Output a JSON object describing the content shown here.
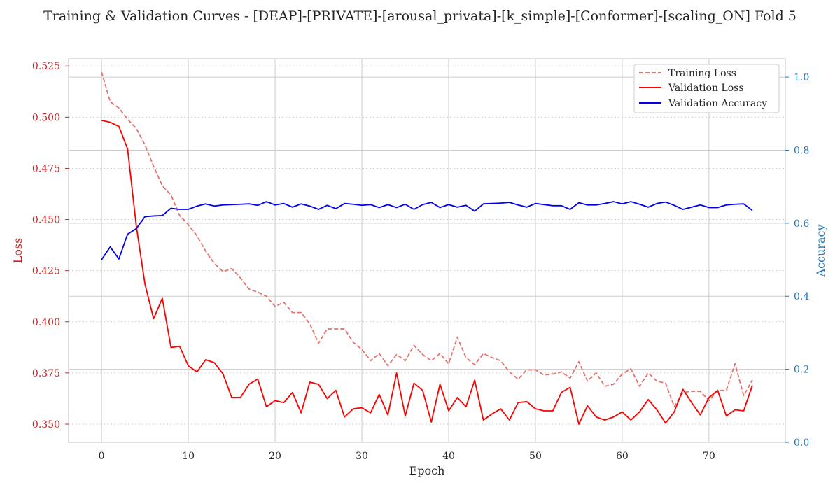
{
  "chart_data": {
    "type": "line",
    "title": "Training & Validation Curves - [DEAP]-[PRIVATE]-[arousal_privata]-[k_simple]-[Conformer]-[scaling_ON] Fold 5",
    "xlabel": "Epoch",
    "ylabel_left": "Loss",
    "ylabel_right": "Accuracy",
    "xlim": [
      -3.8,
      78.8
    ],
    "ylim_left": [
      0.3411,
      0.5285
    ],
    "ylim_right": [
      0.0,
      1.05
    ],
    "x_ticks": [
      0,
      10,
      20,
      30,
      40,
      50,
      60,
      70
    ],
    "y_ticks_left": [
      0.35,
      0.375,
      0.4,
      0.425,
      0.45,
      0.475,
      0.5,
      0.525
    ],
    "y_ticks_right": [
      0.0,
      0.2,
      0.4,
      0.6,
      0.8,
      1.0
    ],
    "legend_position": "top-right",
    "grid": true,
    "colors": {
      "training_loss": "#e8706d",
      "validation_loss": "#ff0000",
      "validation_accuracy": "#0000ee",
      "left_axis": "#cc2222",
      "right_axis": "#1f77b4"
    },
    "x": [
      0,
      1,
      2,
      3,
      4,
      5,
      6,
      7,
      8,
      9,
      10,
      11,
      12,
      13,
      14,
      15,
      16,
      17,
      18,
      19,
      20,
      21,
      22,
      23,
      24,
      25,
      26,
      27,
      28,
      29,
      30,
      31,
      32,
      33,
      34,
      35,
      36,
      37,
      38,
      39,
      40,
      41,
      42,
      43,
      44,
      45,
      46,
      47,
      48,
      49,
      50,
      51,
      52,
      53,
      54,
      55,
      56,
      57,
      58,
      59,
      60,
      61,
      62,
      63,
      64,
      65,
      66,
      67,
      68,
      69,
      70,
      71,
      72,
      73,
      74,
      75
    ],
    "series": [
      {
        "name": "Training Loss",
        "axis": "left",
        "style": "dashed",
        "values": [
          0.522,
          0.5075,
          0.5045,
          0.499,
          0.4945,
          0.4865,
          0.476,
          0.4665,
          0.462,
          0.452,
          0.4475,
          0.442,
          0.4345,
          0.4285,
          0.4245,
          0.426,
          0.4215,
          0.416,
          0.4145,
          0.4125,
          0.4075,
          0.4095,
          0.4045,
          0.4045,
          0.399,
          0.3895,
          0.3965,
          0.3965,
          0.3965,
          0.39,
          0.3865,
          0.381,
          0.3845,
          0.3785,
          0.384,
          0.381,
          0.3885,
          0.384,
          0.381,
          0.3845,
          0.3795,
          0.3925,
          0.3825,
          0.379,
          0.3845,
          0.3825,
          0.381,
          0.3755,
          0.372,
          0.3765,
          0.3765,
          0.374,
          0.3745,
          0.3755,
          0.3725,
          0.3805,
          0.371,
          0.375,
          0.3685,
          0.3695,
          0.3745,
          0.377,
          0.3685,
          0.375,
          0.371,
          0.37,
          0.3585,
          0.3655,
          0.366,
          0.366,
          0.3615,
          0.3665,
          0.3665,
          0.3795,
          0.364,
          0.3715
        ]
      },
      {
        "name": "Validation Loss",
        "axis": "left",
        "style": "solid",
        "values": [
          0.4985,
          0.4975,
          0.4955,
          0.4845,
          0.447,
          0.4185,
          0.4015,
          0.4115,
          0.3875,
          0.388,
          0.3785,
          0.3755,
          0.3815,
          0.38,
          0.3745,
          0.363,
          0.363,
          0.3695,
          0.372,
          0.3585,
          0.3615,
          0.3605,
          0.3655,
          0.3555,
          0.3705,
          0.3695,
          0.3625,
          0.3665,
          0.3535,
          0.3575,
          0.358,
          0.3555,
          0.3645,
          0.3545,
          0.375,
          0.354,
          0.37,
          0.3665,
          0.351,
          0.3695,
          0.3565,
          0.363,
          0.3585,
          0.3715,
          0.352,
          0.355,
          0.3575,
          0.352,
          0.3605,
          0.361,
          0.3575,
          0.3565,
          0.3565,
          0.3655,
          0.368,
          0.35,
          0.359,
          0.3535,
          0.352,
          0.3535,
          0.356,
          0.352,
          0.356,
          0.362,
          0.357,
          0.3505,
          0.356,
          0.367,
          0.3605,
          0.3545,
          0.363,
          0.3665,
          0.354,
          0.357,
          0.3565,
          0.369
        ]
      },
      {
        "name": "Validation Accuracy",
        "axis": "right",
        "style": "solid",
        "values": [
          0.5,
          0.535,
          0.502,
          0.57,
          0.585,
          0.618,
          0.62,
          0.621,
          0.641,
          0.638,
          0.638,
          0.647,
          0.653,
          0.647,
          0.65,
          0.651,
          0.652,
          0.653,
          0.649,
          0.659,
          0.65,
          0.654,
          0.644,
          0.653,
          0.647,
          0.638,
          0.649,
          0.64,
          0.654,
          0.652,
          0.649,
          0.651,
          0.643,
          0.651,
          0.643,
          0.652,
          0.638,
          0.651,
          0.657,
          0.643,
          0.651,
          0.644,
          0.649,
          0.633,
          0.653,
          0.654,
          0.655,
          0.657,
          0.65,
          0.644,
          0.654,
          0.651,
          0.648,
          0.648,
          0.638,
          0.656,
          0.65,
          0.65,
          0.654,
          0.659,
          0.653,
          0.659,
          0.652,
          0.644,
          0.654,
          0.658,
          0.649,
          0.638,
          0.644,
          0.65,
          0.643,
          0.643,
          0.65,
          0.652,
          0.653,
          0.635
        ]
      }
    ]
  }
}
